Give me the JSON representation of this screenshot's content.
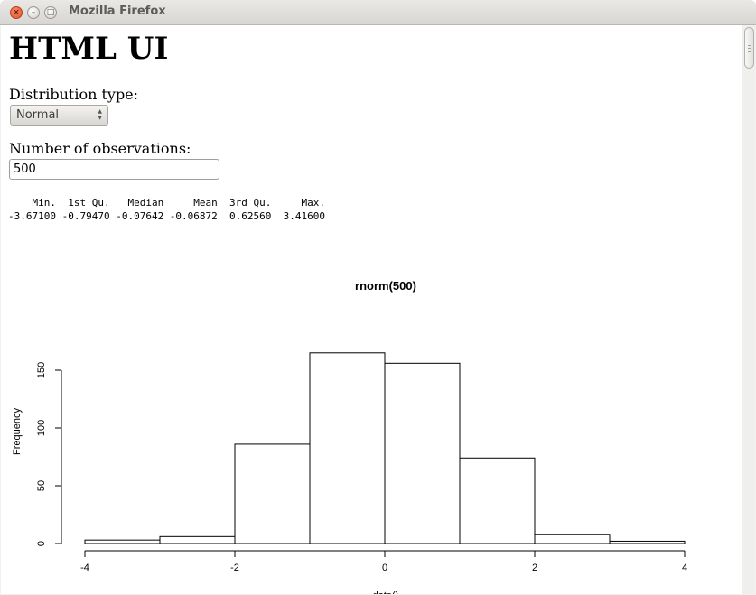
{
  "window": {
    "title": "Mozilla Firefox",
    "close_glyph": "×",
    "minimize_glyph": "–",
    "maximize_glyph": "□"
  },
  "page": {
    "title": "HTML UI",
    "distribution_label": "Distribution type:",
    "distribution_value": "Normal",
    "observations_label": "Number of observations:",
    "observations_value": "500"
  },
  "summary": {
    "header_line": "    Min.  1st Qu.   Median     Mean  3rd Qu.     Max. ",
    "values_line": "-3.67100 -0.79470 -0.07642 -0.06872  0.62560  3.41600 ",
    "labels": [
      "Min.",
      "1st Qu.",
      "Median",
      "Mean",
      "3rd Qu.",
      "Max."
    ],
    "values": [
      "-3.67100",
      "-0.79470",
      "-0.07642",
      "-0.06872",
      "0.62560",
      "3.41600"
    ]
  },
  "chart_data": {
    "type": "bar",
    "title": "rnorm(500)",
    "xlabel": "data()",
    "ylabel": "Frequency",
    "bins": [
      {
        "from": -4,
        "to": -3,
        "count": 3
      },
      {
        "from": -3,
        "to": -2,
        "count": 6
      },
      {
        "from": -2,
        "to": -1,
        "count": 86
      },
      {
        "from": -1,
        "to": 0,
        "count": 165
      },
      {
        "from": 0,
        "to": 1,
        "count": 156
      },
      {
        "from": 1,
        "to": 2,
        "count": 74
      },
      {
        "from": 2,
        "to": 3,
        "count": 8
      },
      {
        "from": 3,
        "to": 4,
        "count": 2
      }
    ],
    "xlim": [
      -4,
      4
    ],
    "ylim": [
      0,
      165
    ],
    "x_ticks": [
      -4,
      -2,
      0,
      2,
      4
    ],
    "y_ticks": [
      0,
      50,
      100,
      150
    ],
    "grid": false,
    "legend": "none"
  }
}
